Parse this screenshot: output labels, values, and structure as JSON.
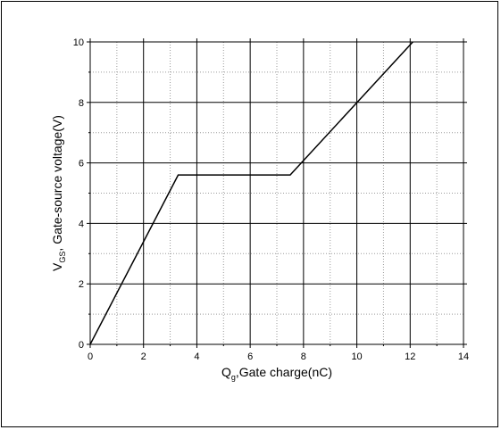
{
  "chart_data": {
    "type": "line",
    "xlabel": {
      "main": "Q",
      "sub": "g",
      "rest": ",Gate charge(nC)"
    },
    "ylabel": {
      "main": "V",
      "sub": "GS",
      "rest": ", Gate-source voltage(V)"
    },
    "xlim": [
      0,
      14
    ],
    "ylim": [
      0,
      10
    ],
    "x_ticks": [
      0,
      2,
      4,
      6,
      8,
      10,
      12,
      14
    ],
    "y_ticks": [
      0,
      2,
      4,
      6,
      8,
      10
    ],
    "grid": {
      "major": "solid",
      "minor": "dotted"
    },
    "series": [
      {
        "x": [
          0,
          3.3,
          7.5,
          12.1
        ],
        "y": [
          0,
          5.6,
          5.6,
          10
        ],
        "color": "#000000"
      }
    ]
  }
}
